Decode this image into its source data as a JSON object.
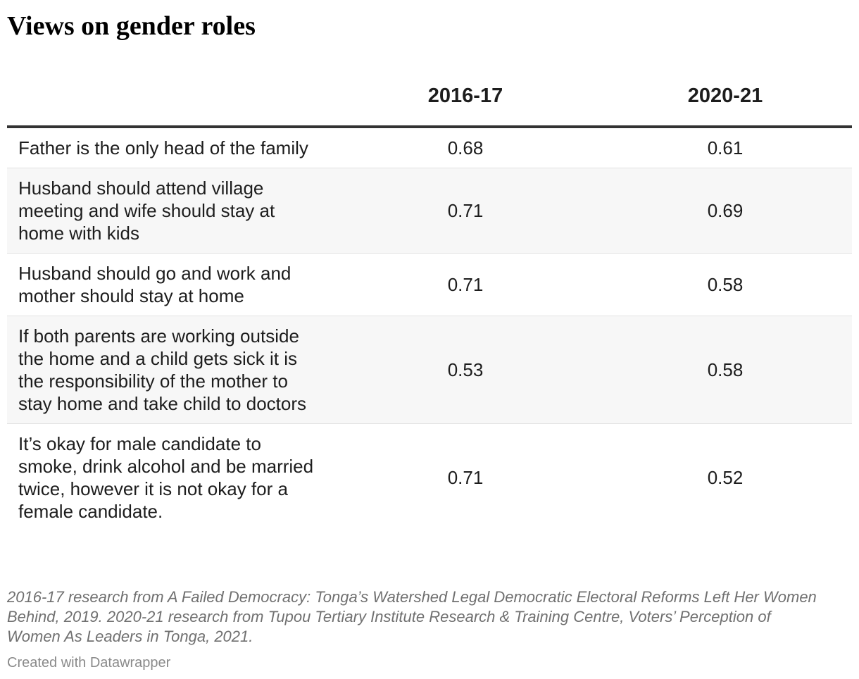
{
  "title": "Views on gender roles",
  "chart_data": {
    "type": "table",
    "title": "Views on gender roles",
    "columns": [
      "",
      "2016-17",
      "2020-21"
    ],
    "rows": [
      {
        "label": "Father is the only head of the family",
        "values": [
          "0.68",
          "0.61"
        ]
      },
      {
        "label": "Husband should attend village meeting and wife should stay at home with kids",
        "values": [
          "0.71",
          "0.69"
        ]
      },
      {
        "label": "Husband should go and work and mother should stay at home",
        "values": [
          "0.71",
          "0.58"
        ]
      },
      {
        "label": "If both parents are working outside the home and a child gets sick it is the responsibility of the mother to stay home and take child to doctors",
        "values": [
          "0.53",
          "0.58"
        ]
      },
      {
        "label": "It’s okay for male candidate to smoke, drink alcohol and be married twice, however it is not okay for a female candidate.",
        "values": [
          "0.71",
          "0.52"
        ]
      }
    ]
  },
  "notes": "2016-17 research from A Failed Democracy: Tonga’s Watershed Legal Democratic Electoral Reforms Left Her Women Behind, 2019. 2020-21 research from Tupou Tertiary Institute Research & Training Centre, Voters’ Perception of Women As Leaders in Tonga, 2021.",
  "credit": "Created with Datawrapper",
  "colors": {
    "text": "#1d1d1d",
    "header_rule": "#333333",
    "row_stripe": "#f7f7f7",
    "row_divider": "#e2e2e2",
    "notes": "#707070"
  }
}
